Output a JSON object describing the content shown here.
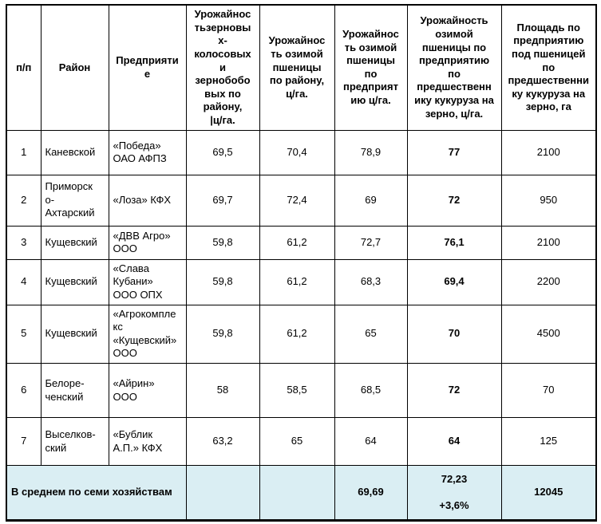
{
  "table": {
    "headers": {
      "num": "п/п",
      "district": "Район",
      "enterprise": "Предприяти\nе",
      "yield_cereals_district": "Урожайнос\nтьзерновы\nх-\nколосовых\nи\nзернобобо\nвых по\nрайону,\n|ц/га.",
      "yield_wheat_district": "Урожайнос\nть озимой\nпшеницы\nпо району,\nц/га.",
      "yield_wheat_enterprise": "Урожайнос\nть озимой\nпшеницы\nпо\nпредприят\nию ц/га.",
      "yield_wheat_after_corn": "Урожайность\nозимой\nпшеницы по\nпредприятию\nпо\nпредшественн\nику кукуруза на\nзерно, ц/га.",
      "area_after_corn": "Площадь по\nпредприятию\nпод пшеницей\nпо\nпредшественни\nку кукуруза на\nзерно, га"
    },
    "rows": [
      {
        "num": "1",
        "district": "Каневской",
        "enterprise": "«Победа»\nОАО АФПЗ",
        "yield_cereals_district": "69,5",
        "yield_wheat_district": "70,4",
        "yield_wheat_enterprise": "78,9",
        "yield_wheat_after_corn": "77",
        "area_after_corn": "2100"
      },
      {
        "num": "2",
        "district": "Приморск\nо-\nАхтарский",
        "enterprise": "«Лоза» КФХ",
        "yield_cereals_district": "69,7",
        "yield_wheat_district": "72,4",
        "yield_wheat_enterprise": "69",
        "yield_wheat_after_corn": "72",
        "area_after_corn": "950"
      },
      {
        "num": "3",
        "district": "Кущевский",
        "enterprise": "«ДВВ Агро»\nООО",
        "yield_cereals_district": "59,8",
        "yield_wheat_district": "61,2",
        "yield_wheat_enterprise": "72,7",
        "yield_wheat_after_corn": "76,1",
        "area_after_corn": "2100"
      },
      {
        "num": "4",
        "district": "Кущевский",
        "enterprise": "«Слава\nКубани»\nООО ОПХ",
        "yield_cereals_district": "59,8",
        "yield_wheat_district": "61,2",
        "yield_wheat_enterprise": "68,3",
        "yield_wheat_after_corn": "69,4",
        "area_after_corn": "2200"
      },
      {
        "num": "5",
        "district": "Кущевский",
        "enterprise": "«Агрокомпле\nкс\n«Кущевский»\nООО",
        "yield_cereals_district": "59,8",
        "yield_wheat_district": "61,2",
        "yield_wheat_enterprise": "65",
        "yield_wheat_after_corn": "70",
        "area_after_corn": "4500"
      },
      {
        "num": "6",
        "district": "Белоре-\nченский",
        "enterprise": "«Айрин»\nООО",
        "yield_cereals_district": "58",
        "yield_wheat_district": "58,5",
        "yield_wheat_enterprise": "68,5",
        "yield_wheat_after_corn": "72",
        "area_after_corn": "70"
      },
      {
        "num": "7",
        "district": "Выселков-\nский",
        "enterprise": "«Бублик\nА.П.» КФХ",
        "yield_cereals_district": "63,2",
        "yield_wheat_district": "65",
        "yield_wheat_enterprise": "64",
        "yield_wheat_after_corn": "64",
        "area_after_corn": "125"
      }
    ],
    "footer": {
      "label": "В среднем по семи хозяйствам",
      "yield_wheat_enterprise_avg": "69,69",
      "yield_wheat_after_corn_avg": "72,23\n\n+3,6%",
      "area_total": "12045"
    }
  },
  "colors": {
    "footer_bg": "#daeef3",
    "border": "#000000",
    "text": "#000000"
  }
}
